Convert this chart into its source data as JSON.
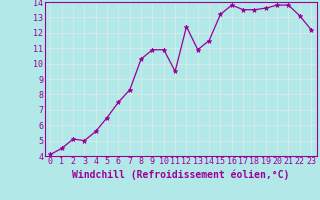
{
  "x": [
    0,
    1,
    2,
    3,
    4,
    5,
    6,
    7,
    8,
    9,
    10,
    11,
    12,
    13,
    14,
    15,
    16,
    17,
    18,
    19,
    20,
    21,
    22,
    23
  ],
  "y": [
    4.1,
    4.5,
    5.1,
    5.0,
    5.6,
    6.5,
    7.5,
    8.3,
    10.3,
    10.9,
    10.9,
    9.5,
    12.4,
    10.9,
    11.5,
    13.2,
    13.8,
    13.5,
    13.5,
    13.6,
    13.8,
    13.8,
    13.1,
    12.2
  ],
  "line_color": "#990099",
  "marker": "*",
  "marker_size": 3.5,
  "background_color": "#b3e8e8",
  "grid_color": "#d0eaea",
  "xlabel": "Windchill (Refroidissement éolien,°C)",
  "ylim": [
    4,
    14
  ],
  "xlim": [
    -0.5,
    23.5
  ],
  "yticks": [
    4,
    5,
    6,
    7,
    8,
    9,
    10,
    11,
    12,
    13,
    14
  ],
  "xticks": [
    0,
    1,
    2,
    3,
    4,
    5,
    6,
    7,
    8,
    9,
    10,
    11,
    12,
    13,
    14,
    15,
    16,
    17,
    18,
    19,
    20,
    21,
    22,
    23
  ],
  "xlabel_color": "#990099",
  "tick_color": "#990099",
  "spine_color": "#990099",
  "tick_fontsize": 6.0,
  "xlabel_fontsize": 7.0
}
